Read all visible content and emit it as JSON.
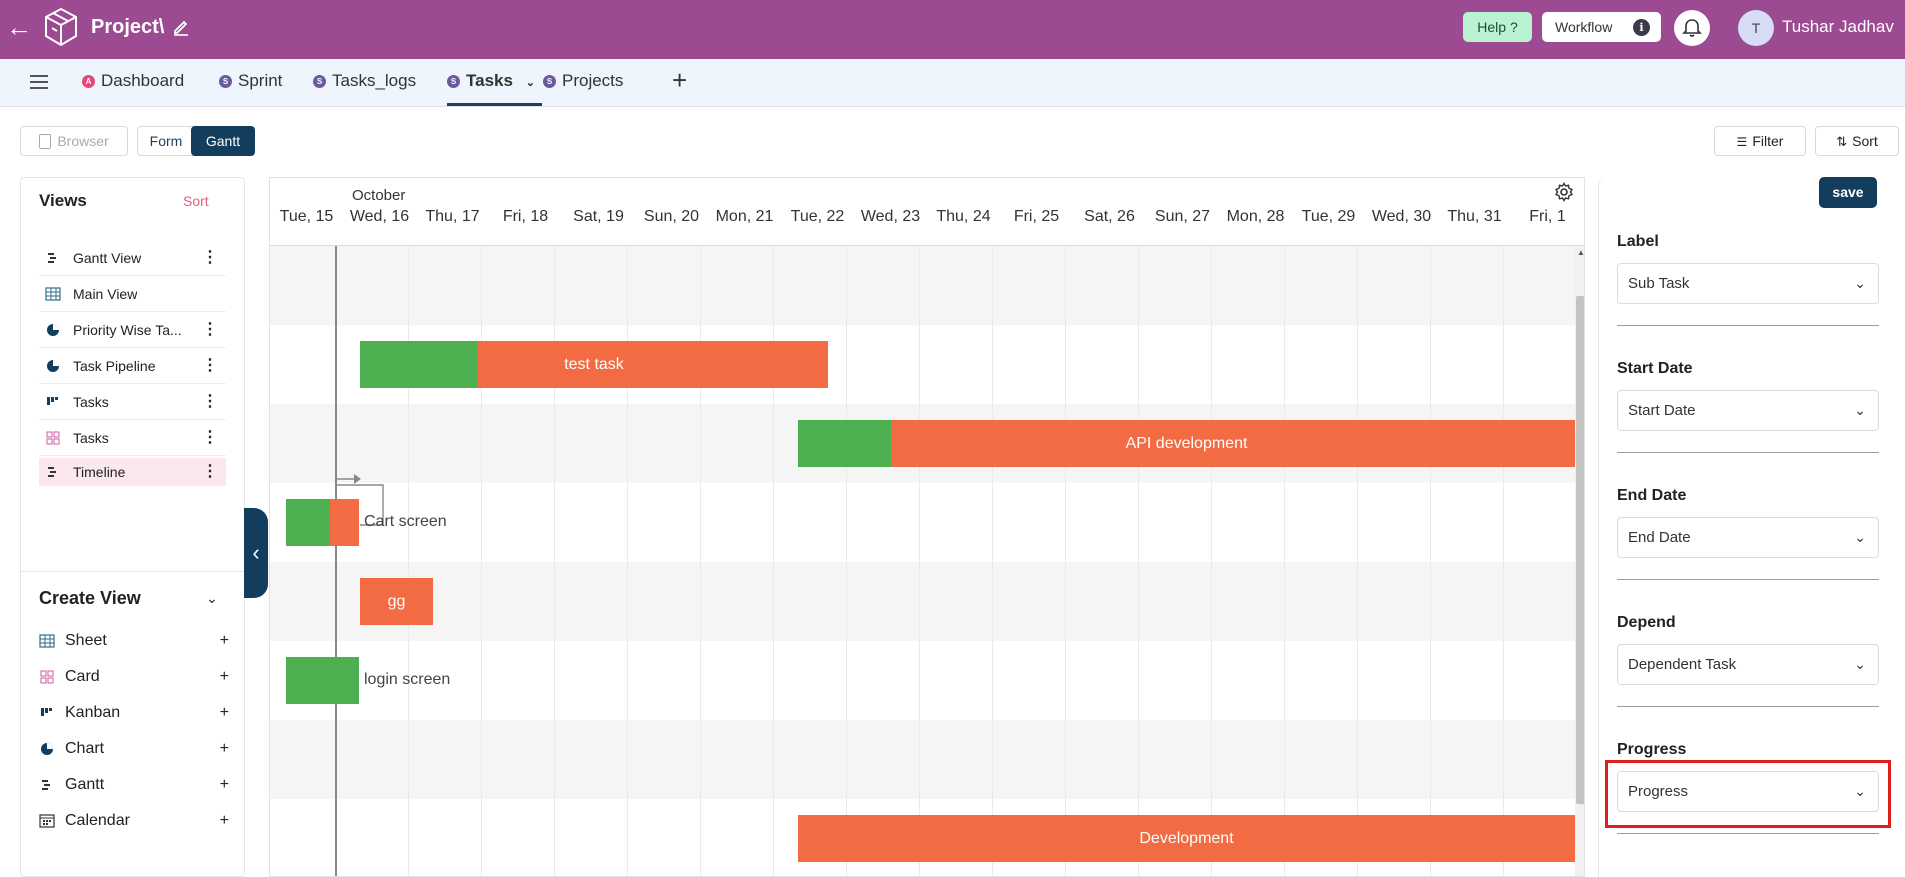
{
  "header": {
    "back_icon": "arrow-left-icon",
    "project_title": "Project\\",
    "help_label": "Help ?",
    "workflow_label": "Workflow",
    "workflow_info": "i",
    "user_initial": "T",
    "user_name": "Tushar Jadhav"
  },
  "tabs": [
    {
      "label": "Dashboard",
      "badge": "A",
      "badge_color": "#e8457a"
    },
    {
      "label": "Sprint",
      "badge": "S",
      "badge_color": "#6a5a9e"
    },
    {
      "label": "Tasks_logs",
      "badge": "S",
      "badge_color": "#6a5a9e"
    },
    {
      "label": "Tasks",
      "badge": "S",
      "badge_color": "#6a5a9e",
      "active": true
    },
    {
      "label": "Projects",
      "badge": "S",
      "badge_color": "#6a5a9e"
    }
  ],
  "add_tab_label": "+",
  "toolbar": {
    "browser_label": "Browser",
    "form_label": "Form",
    "gantt_label": "Gantt",
    "filter_label": "Filter",
    "sort_label": "Sort"
  },
  "views": {
    "title": "Views",
    "sort_label": "Sort",
    "items": [
      {
        "label": "Gantt View",
        "icon": "gantt-icon"
      },
      {
        "label": "Main View",
        "icon": "grid-icon"
      },
      {
        "label": "Priority Wise Ta...",
        "icon": "pie-chart-icon"
      },
      {
        "label": "Task Pipeline",
        "icon": "pie-chart-icon"
      },
      {
        "label": "Tasks",
        "icon": "kanban-icon"
      },
      {
        "label": "Tasks",
        "icon": "card-icon"
      },
      {
        "label": "Timeline",
        "icon": "gantt-icon",
        "selected": true
      }
    ]
  },
  "create_view": {
    "title": "Create View",
    "items": [
      {
        "label": "Sheet",
        "icon": "grid-icon"
      },
      {
        "label": "Card",
        "icon": "card-icon"
      },
      {
        "label": "Kanban",
        "icon": "kanban-icon"
      },
      {
        "label": "Chart",
        "icon": "pie-chart-icon"
      },
      {
        "label": "Gantt",
        "icon": "gantt-icon"
      },
      {
        "label": "Calendar",
        "icon": "calendar-icon"
      }
    ],
    "plus": "+"
  },
  "gantt": {
    "month_label": "October",
    "days": [
      "Tue, 15",
      "Wed, 16",
      "Thu, 17",
      "Fri, 18",
      "Sat, 19",
      "Sun, 20",
      "Mon, 21",
      "Tue, 22",
      "Wed, 23",
      "Thu, 24",
      "Fri, 25",
      "Sat, 26",
      "Sun, 27",
      "Mon, 28",
      "Tue, 29",
      "Wed, 30",
      "Thu, 31",
      "Fri, 1"
    ],
    "tasks": [
      {
        "name": "test task",
        "start": "Tue, 15",
        "end": "Tue, 22",
        "progress_pct": 25,
        "label_inside": true
      },
      {
        "name": "API development",
        "start": "Tue, 22",
        "end": "Fri, 1",
        "progress_pct": 12,
        "label_inside": true
      },
      {
        "name": "Cart screen",
        "start": "Tue, 15",
        "end": "Wed, 16",
        "progress_pct": 60,
        "label_inside": false
      },
      {
        "name": "gg",
        "start": "Wed, 16",
        "end": "Wed, 16",
        "progress_pct": 0,
        "label_inside": true
      },
      {
        "name": "login screen",
        "start": "Tue, 15",
        "end": "Wed, 16",
        "progress_pct": 100,
        "label_inside": false
      },
      {
        "name": "Development",
        "start": "Tue, 22",
        "end": "Fri, 1",
        "progress_pct": 0,
        "label_inside": true
      }
    ],
    "colors": {
      "bar": "#f26b43",
      "progress": "#4caf50",
      "row_alt": "#f5f5f5"
    }
  },
  "settings_panel": {
    "save_label": "save",
    "fields": [
      {
        "label": "Label",
        "value": "Sub Task"
      },
      {
        "label": "Start Date",
        "value": "Start Date"
      },
      {
        "label": "End Date",
        "value": "End Date"
      },
      {
        "label": "Depend",
        "value": "Dependent Task"
      },
      {
        "label": "Progress",
        "value": "Progress",
        "highlighted": true
      }
    ]
  }
}
